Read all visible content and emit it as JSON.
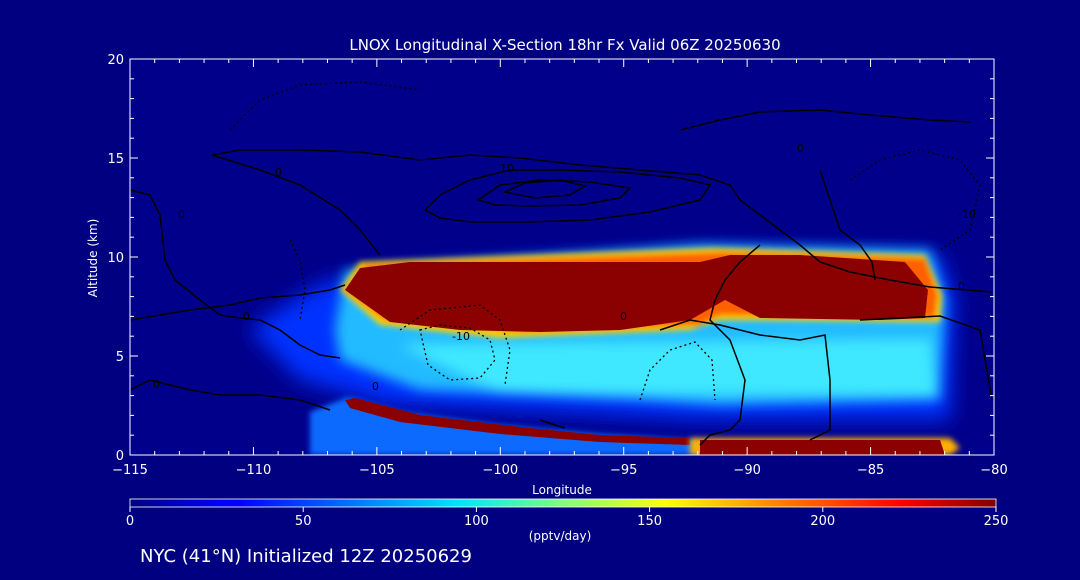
{
  "chart_data": {
    "type": "heatmap",
    "title": "LNOX Longitudinal X-Section 18hr  Fx Valid 06Z 20250630",
    "xlabel": "Longitude",
    "ylabel": "Altitude (km)",
    "xlim": [
      -115,
      -80
    ],
    "ylim": [
      0,
      20
    ],
    "x_ticks": [
      "−115",
      "−110",
      "−105",
      "−100",
      "−95",
      "−90",
      "−85",
      "−80"
    ],
    "y_ticks": [
      "0",
      "5",
      "10",
      "15",
      "20"
    ],
    "colorbar": {
      "min": 0,
      "max": 250,
      "ticks": [
        "0",
        "50",
        "100",
        "150",
        "200",
        "250"
      ],
      "label": "(pptv/day)"
    },
    "contour_labels": [
      "0",
      "10",
      "-10"
    ],
    "footer": "NYC (41°N) Initialized 12Z 20250629",
    "colors": {
      "background": "#000080",
      "foreground": "#ffffff",
      "contour": "#000000"
    }
  }
}
